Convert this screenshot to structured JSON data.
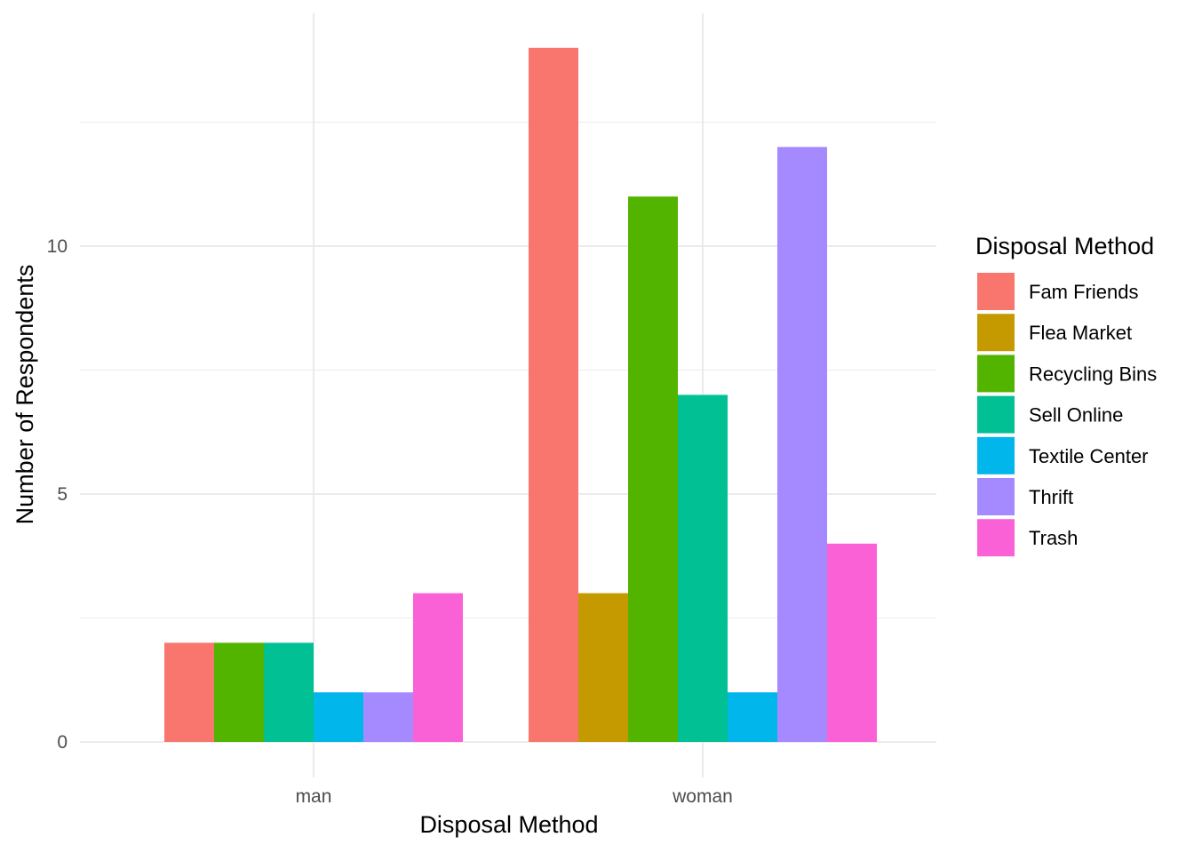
{
  "chart_data": {
    "type": "bar",
    "categories": [
      "man",
      "woman"
    ],
    "series": [
      {
        "name": "Fam Friends",
        "color": "#F8766D",
        "values": [
          2,
          14
        ]
      },
      {
        "name": "Flea Market",
        "color": "#C49A00",
        "values": [
          0,
          3
        ]
      },
      {
        "name": "Recycling Bins",
        "color": "#53B400",
        "values": [
          2,
          11
        ]
      },
      {
        "name": "Sell Online",
        "color": "#00C094",
        "values": [
          2,
          7
        ]
      },
      {
        "name": "Textile Center",
        "color": "#00B6EB",
        "values": [
          1,
          1
        ]
      },
      {
        "name": "Thrift",
        "color": "#A58AFF",
        "values": [
          1,
          12
        ]
      },
      {
        "name": "Trash",
        "color": "#FB61D7",
        "values": [
          3,
          4
        ]
      }
    ],
    "xlabel": "Disposal Method",
    "ylabel": "Number of Respondents",
    "legend_title": "Disposal Method",
    "legend_position": "right",
    "ylim": [
      0,
      14.7
    ],
    "yticks": [
      0,
      5,
      10
    ],
    "grid": true
  }
}
